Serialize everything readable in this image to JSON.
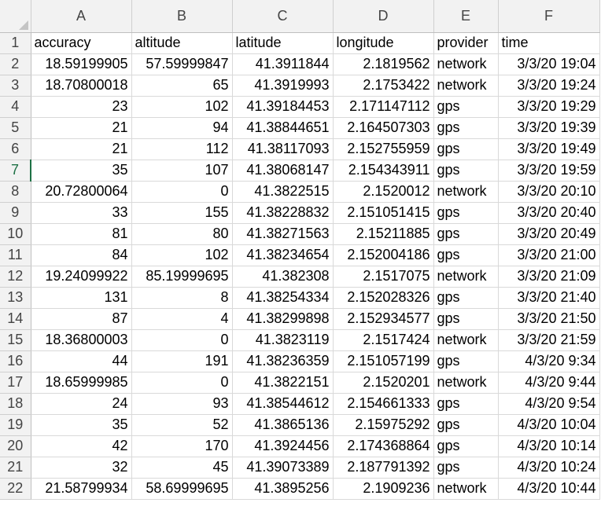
{
  "columns": [
    "A",
    "B",
    "C",
    "D",
    "E",
    "F"
  ],
  "rows": [
    {
      "n": "1",
      "cells": [
        "accuracy",
        "altitude",
        "latitude",
        "longitude",
        "provider",
        "time"
      ]
    },
    {
      "n": "2",
      "cells": [
        "18.59199905",
        "57.59999847",
        "41.3911844",
        "2.1819562",
        "network",
        "3/3/20 19:04"
      ]
    },
    {
      "n": "3",
      "cells": [
        "18.70800018",
        "65",
        "41.3919993",
        "2.1753422",
        "network",
        "3/3/20 19:24"
      ]
    },
    {
      "n": "4",
      "cells": [
        "23",
        "102",
        "41.39184453",
        "2.171147112",
        "gps",
        "3/3/20 19:29"
      ]
    },
    {
      "n": "5",
      "cells": [
        "21",
        "94",
        "41.38844651",
        "2.164507303",
        "gps",
        "3/3/20 19:39"
      ]
    },
    {
      "n": "6",
      "cells": [
        "21",
        "112",
        "41.38117093",
        "2.152755959",
        "gps",
        "3/3/20 19:49"
      ]
    },
    {
      "n": "7",
      "cells": [
        "35",
        "107",
        "41.38068147",
        "2.154343911",
        "gps",
        "3/3/20 19:59"
      ]
    },
    {
      "n": "8",
      "cells": [
        "20.72800064",
        "0",
        "41.3822515",
        "2.1520012",
        "network",
        "3/3/20 20:10"
      ]
    },
    {
      "n": "9",
      "cells": [
        "33",
        "155",
        "41.38228832",
        "2.151051415",
        "gps",
        "3/3/20 20:40"
      ]
    },
    {
      "n": "10",
      "cells": [
        "81",
        "80",
        "41.38271563",
        "2.15211885",
        "gps",
        "3/3/20 20:49"
      ]
    },
    {
      "n": "11",
      "cells": [
        "84",
        "102",
        "41.38234654",
        "2.152004186",
        "gps",
        "3/3/20 21:00"
      ]
    },
    {
      "n": "12",
      "cells": [
        "19.24099922",
        "85.19999695",
        "41.382308",
        "2.1517075",
        "network",
        "3/3/20 21:09"
      ]
    },
    {
      "n": "13",
      "cells": [
        "131",
        "8",
        "41.38254334",
        "2.152028326",
        "gps",
        "3/3/20 21:40"
      ]
    },
    {
      "n": "14",
      "cells": [
        "87",
        "4",
        "41.38299898",
        "2.152934577",
        "gps",
        "3/3/20 21:50"
      ]
    },
    {
      "n": "15",
      "cells": [
        "18.36800003",
        "0",
        "41.3823119",
        "2.1517424",
        "network",
        "3/3/20 21:59"
      ]
    },
    {
      "n": "16",
      "cells": [
        "44",
        "191",
        "41.38236359",
        "2.151057199",
        "gps",
        "4/3/20 9:34"
      ]
    },
    {
      "n": "17",
      "cells": [
        "18.65999985",
        "0",
        "41.3822151",
        "2.1520201",
        "network",
        "4/3/20 9:44"
      ]
    },
    {
      "n": "18",
      "cells": [
        "24",
        "93",
        "41.38544612",
        "2.154661333",
        "gps",
        "4/3/20 9:54"
      ]
    },
    {
      "n": "19",
      "cells": [
        "35",
        "52",
        "41.3865136",
        "2.15975292",
        "gps",
        "4/3/20 10:04"
      ]
    },
    {
      "n": "20",
      "cells": [
        "42",
        "170",
        "41.3924456",
        "2.174368864",
        "gps",
        "4/3/20 10:14"
      ]
    },
    {
      "n": "21",
      "cells": [
        "32",
        "45",
        "41.39073389",
        "2.187791392",
        "gps",
        "4/3/20 10:24"
      ]
    },
    {
      "n": "22",
      "cells": [
        "21.58799934",
        "58.69999695",
        "41.3895256",
        "2.1909236",
        "network",
        "4/3/20 10:44"
      ]
    }
  ],
  "active_row": "7",
  "colors": {
    "header_bg": "#f2f2f2",
    "grid": "#d9d9d9",
    "active_row_header": "#1e7145"
  }
}
